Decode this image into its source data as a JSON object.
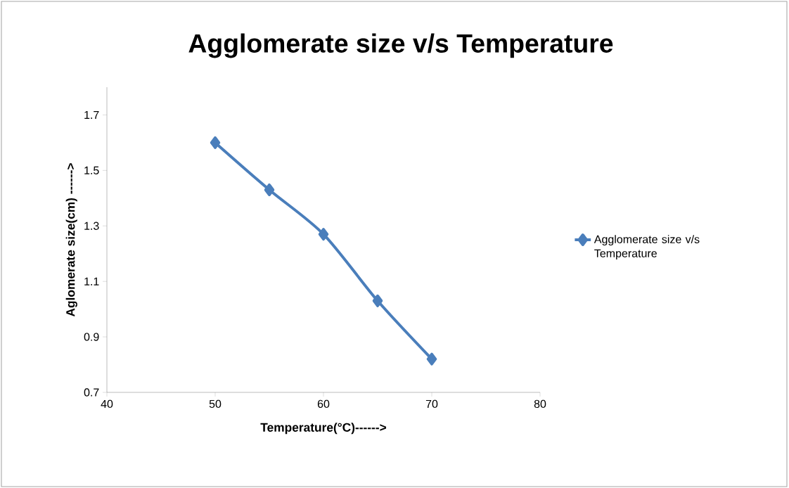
{
  "chart_data": {
    "type": "line",
    "title": "Agglomerate size v/s Temperature",
    "xlabel": "Temperature(°C)------>",
    "ylabel": "Aglomerate size(cm) ------>",
    "x": [
      50,
      55,
      60,
      65,
      70
    ],
    "series": [
      {
        "name": "Agglomerate size v/s Temperature",
        "color": "#4a7ebb",
        "values": [
          1.6,
          1.43,
          1.27,
          1.03,
          0.82
        ]
      }
    ],
    "xlim": [
      40,
      80
    ],
    "xticks": [
      40,
      50,
      60,
      70,
      80
    ],
    "ylim": [
      0.7,
      1.8
    ],
    "yticks": [
      0.7,
      0.9,
      1.1,
      1.3,
      1.5,
      1.7
    ],
    "grid": false,
    "legend": "right",
    "marker": "diamond",
    "line_style": "solid"
  }
}
